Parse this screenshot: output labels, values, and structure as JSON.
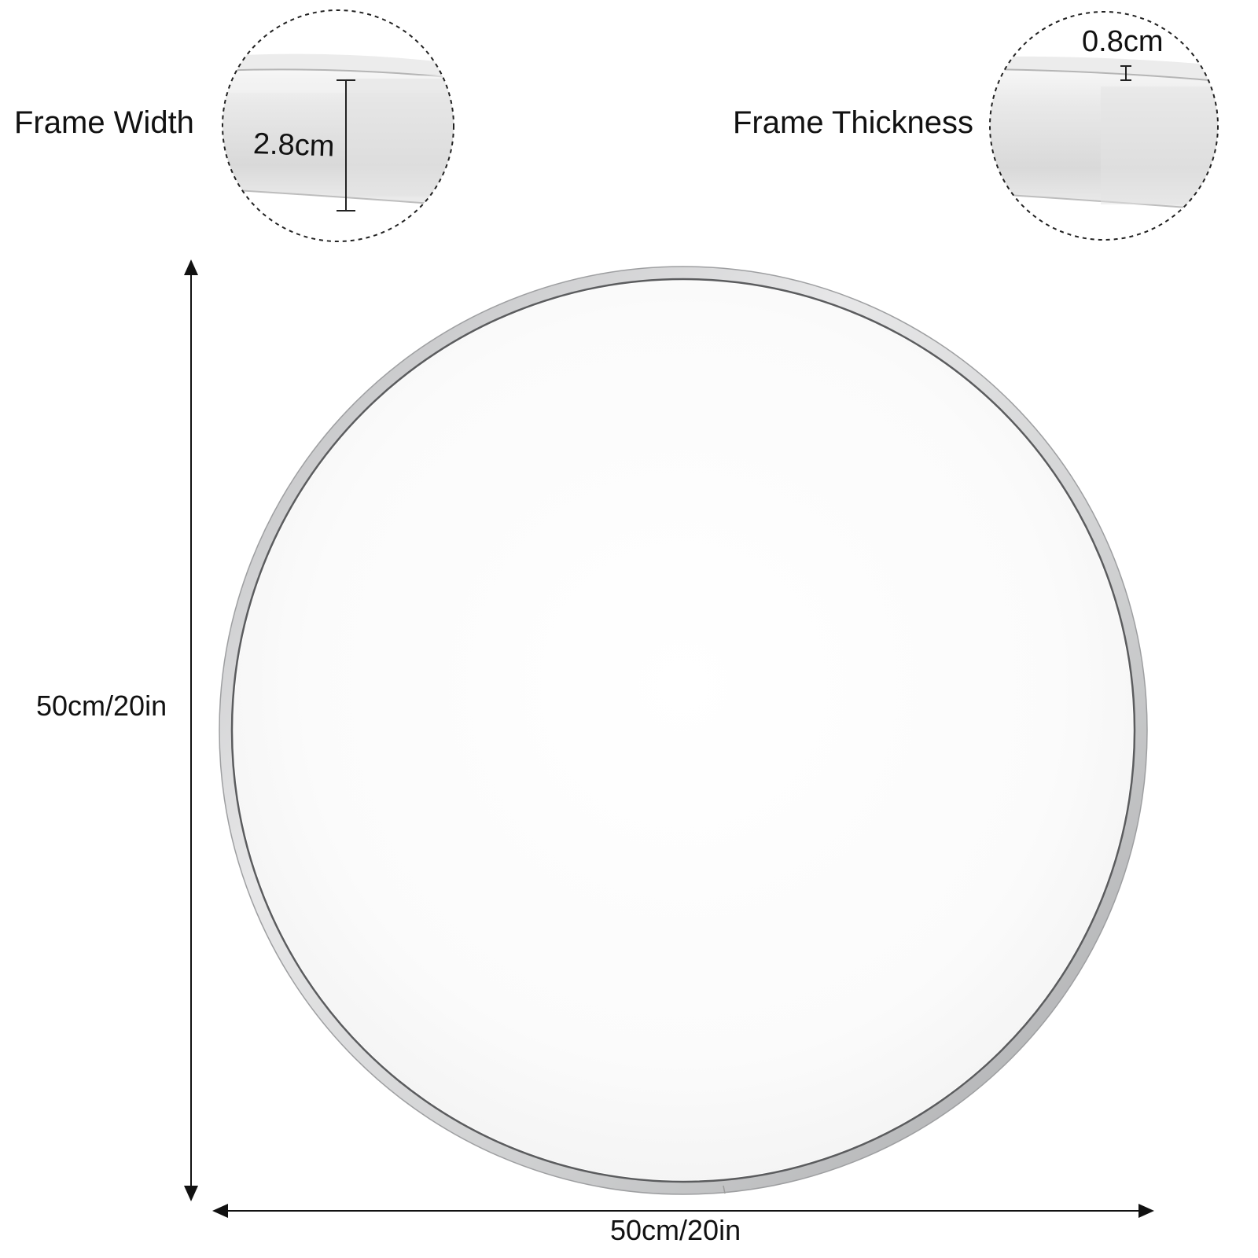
{
  "mirror": {
    "frame_color": "#c8c9cb",
    "glass_color": "#ffffff"
  },
  "detail_callouts": {
    "frame_width": {
      "label": "Frame Width",
      "value": "2.8cm"
    },
    "frame_thickness": {
      "label": "Frame Thickness",
      "value": "0.8cm"
    }
  },
  "dimensions": {
    "height": "50cm/20in",
    "width": "50cm/20in"
  }
}
